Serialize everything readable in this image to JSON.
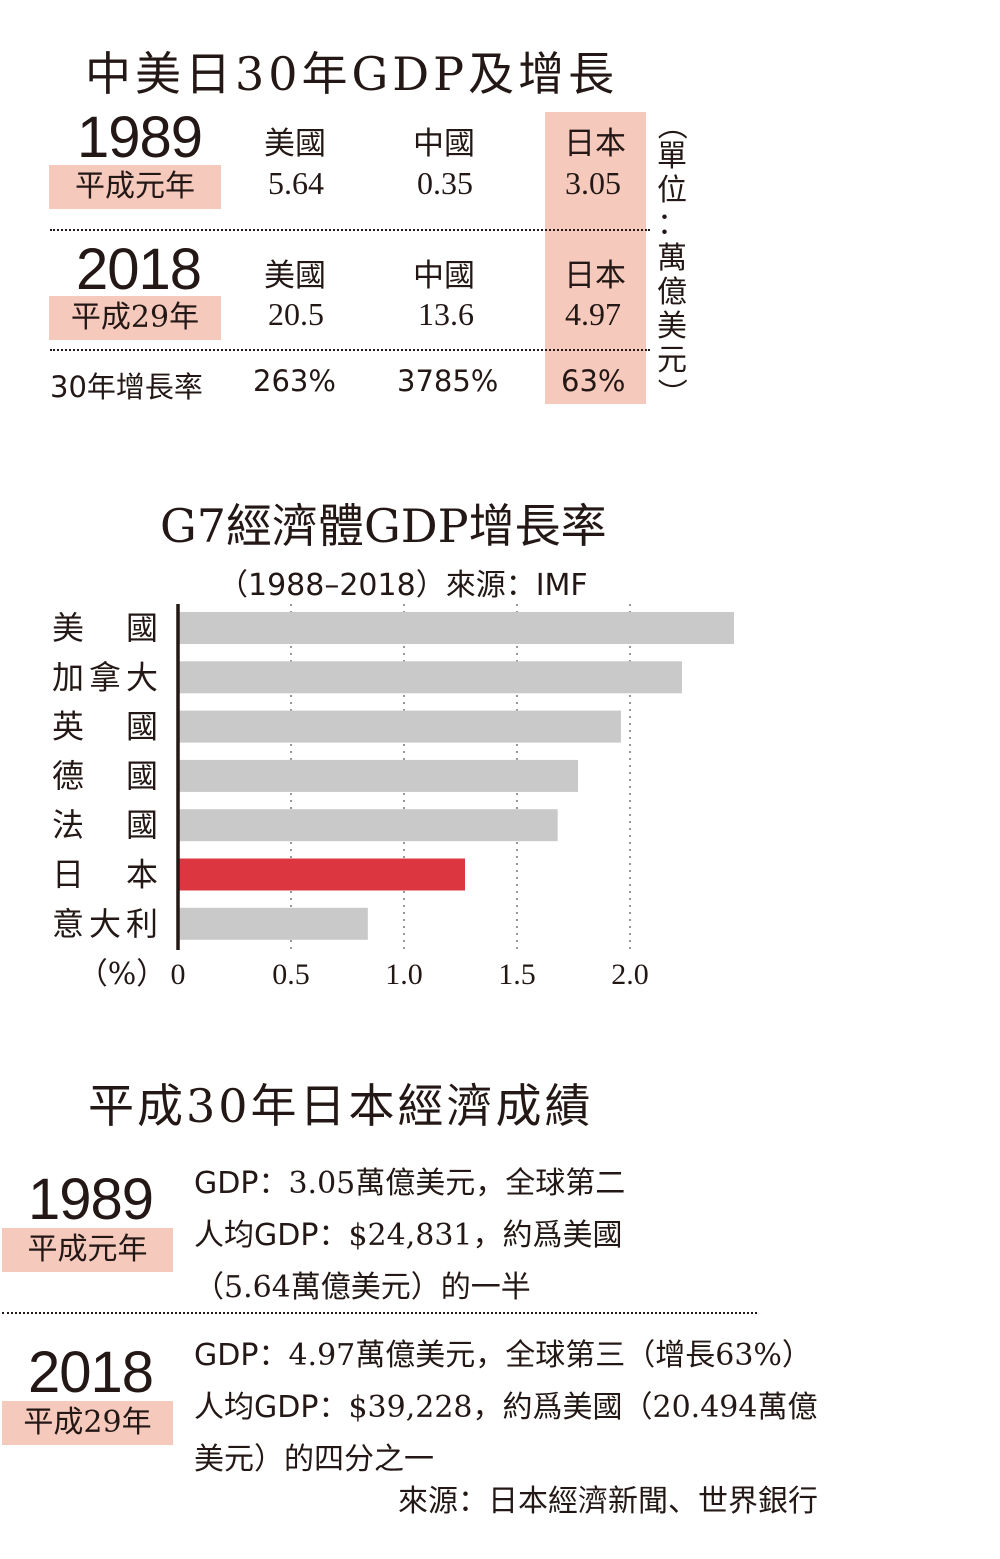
{
  "section1": {
    "title": "中美日30年GDP及增長",
    "unit": [
      "（",
      "單",
      "位",
      "：",
      "萬",
      "億",
      "美",
      "元",
      "）"
    ],
    "rows": [
      {
        "year": "1989",
        "era": "平成元年",
        "countries": [
          "美國",
          "中國",
          "日本"
        ],
        "values": [
          "5.64",
          "0.35",
          "3.05"
        ]
      },
      {
        "year": "2018",
        "era": "平成29年",
        "countries": [
          "美國",
          "中國",
          "日本"
        ],
        "values": [
          "20.5",
          "13.6",
          "4.97"
        ]
      }
    ],
    "growth": {
      "label": "30年增長率",
      "values": [
        "263%",
        "3785%",
        "63%"
      ]
    }
  },
  "chart_data": {
    "type": "bar",
    "orientation": "horizontal",
    "title": "G7經濟體GDP增長率",
    "subtitle": "（1988–2018）來源：IMF",
    "categories": [
      "美　國",
      "加拿大",
      "英　國",
      "德　國",
      "法　國",
      "日　本",
      "意大利"
    ],
    "values": [
      2.46,
      2.23,
      1.96,
      1.77,
      1.68,
      1.27,
      0.84
    ],
    "highlight": "日　本",
    "xlabel": "（%）",
    "xticks": [
      "0",
      "0.5",
      "1.0",
      "1.5",
      "2.0"
    ],
    "xlim": [
      0,
      2.5
    ],
    "grid": true,
    "colors": {
      "bar": "#c9c9c9",
      "highlight": "#dc3640",
      "grid": "#777777"
    }
  },
  "section3": {
    "title": "平成30年日本經濟成績",
    "entries": [
      {
        "year": "1989",
        "era": "平成元年",
        "lines": [
          {
            "label": "GDP：",
            "text": "3.05萬億美元，全球第二"
          },
          {
            "label": "人均GDP：",
            "text": "$24,831，約爲美國"
          },
          {
            "label": "",
            "text": "（5.64萬億美元）的一半"
          }
        ]
      },
      {
        "year": "2018",
        "era": "平成29年",
        "lines": [
          {
            "label": "GDP：",
            "text": "4.97萬億美元，全球第三（增長63%）"
          },
          {
            "label": "人均GDP：",
            "text": "$39,228，約爲美國（20.494萬億"
          },
          {
            "label": "",
            "text": "美元）的四分之一"
          }
        ]
      }
    ],
    "source": "來源：日本經濟新聞、世界銀行"
  },
  "colors": {
    "pink": "#f5c9bc",
    "ink": "#231815"
  }
}
